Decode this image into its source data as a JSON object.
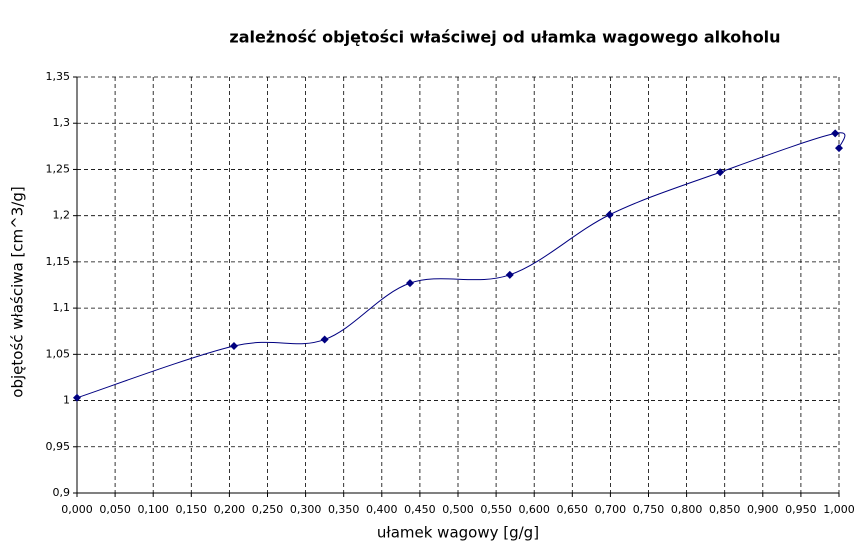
{
  "chart_data": {
    "type": "scatter",
    "smooth": true,
    "title": "zależność objętości właściwej od ułamka wagowego alkoholu",
    "x_label": "ułamek wagowy [g/g]",
    "y_label": "objętość właściwa [cm^3/g]",
    "color": "#000080",
    "grid": true,
    "x": [
      0.0,
      0.206,
      0.325,
      0.437,
      0.568,
      0.699,
      0.844,
      0.995,
      1.0
    ],
    "values": [
      1.003,
      1.059,
      1.066,
      1.127,
      1.136,
      1.201,
      1.247,
      1.289,
      1.273
    ],
    "xlim": [
      0,
      1
    ],
    "ylim": [
      0.9,
      1.35
    ],
    "xticks": [
      {
        "value": 0,
        "label": "0,000"
      },
      {
        "value": 0.05,
        "label": "0,050"
      },
      {
        "value": 0.1,
        "label": "0,100"
      },
      {
        "value": 0.15,
        "label": "0,150"
      },
      {
        "value": 0.2,
        "label": "0,200"
      },
      {
        "value": 0.25,
        "label": "0,250"
      },
      {
        "value": 0.3,
        "label": "0,300"
      },
      {
        "value": 0.35,
        "label": "0,350"
      },
      {
        "value": 0.4,
        "label": "0,400"
      },
      {
        "value": 0.45,
        "label": "0,450"
      },
      {
        "value": 0.5,
        "label": "0,500"
      },
      {
        "value": 0.55,
        "label": "0,550"
      },
      {
        "value": 0.6,
        "label": "0,600"
      },
      {
        "value": 0.65,
        "label": "0,650"
      },
      {
        "value": 0.7,
        "label": "0,700"
      },
      {
        "value": 0.75,
        "label": "0,750"
      },
      {
        "value": 0.8,
        "label": "0,800"
      },
      {
        "value": 0.85,
        "label": "0,850"
      },
      {
        "value": 0.9,
        "label": "0,900"
      },
      {
        "value": 0.95,
        "label": "0,950"
      },
      {
        "value": 1,
        "label": "1,000"
      }
    ],
    "yticks": [
      {
        "value": 0.9,
        "label": "0,9"
      },
      {
        "value": 0.95,
        "label": "0,95"
      },
      1,
      {
        "value": 1.05,
        "label": "1,05"
      },
      {
        "value": 1.1,
        "label": "1,1"
      },
      {
        "value": 1.15,
        "label": "1,15"
      },
      {
        "value": 1.2,
        "label": "1,2"
      },
      {
        "value": 1.25,
        "label": "1,25"
      },
      {
        "value": 1.3,
        "label": "1,3"
      },
      {
        "value": 1.35,
        "label": "1,35"
      }
    ]
  }
}
